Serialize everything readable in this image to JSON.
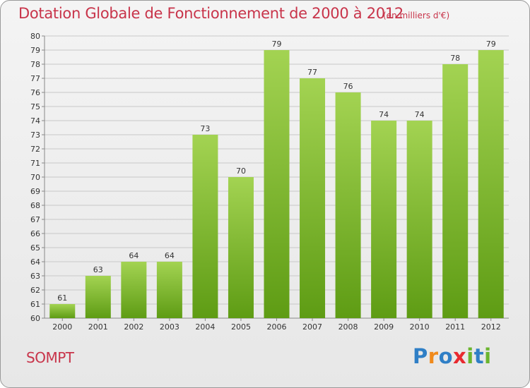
{
  "header": {
    "title": "Dotation Globale de Fonctionnement de 2000 à 2012",
    "subtitle": "(en milliers d'€)"
  },
  "footer": {
    "commune": "SOMPT",
    "logo": "Proxiti"
  },
  "colors": {
    "title": "#c8344a",
    "bar_light": "#a3d352",
    "bar_dark": "#5e9c14",
    "axis": "#888888",
    "grid": "#c8c8c8"
  },
  "chart_data": {
    "type": "bar",
    "categories": [
      "2000",
      "2001",
      "2002",
      "2003",
      "2004",
      "2005",
      "2006",
      "2007",
      "2008",
      "2009",
      "2010",
      "2011",
      "2012"
    ],
    "values": [
      61,
      63,
      64,
      64,
      73,
      70,
      79,
      77,
      76,
      74,
      74,
      78,
      79
    ],
    "title": "Dotation Globale de Fonctionnement de 2000 à 2012",
    "subtitle": "(en milliers d'€)",
    "ylim": [
      60,
      80
    ],
    "yticks": [
      60,
      61,
      62,
      63,
      64,
      65,
      66,
      67,
      68,
      69,
      70,
      71,
      72,
      73,
      74,
      75,
      76,
      77,
      78,
      79,
      80
    ],
    "grid": true,
    "data_labels": true
  }
}
